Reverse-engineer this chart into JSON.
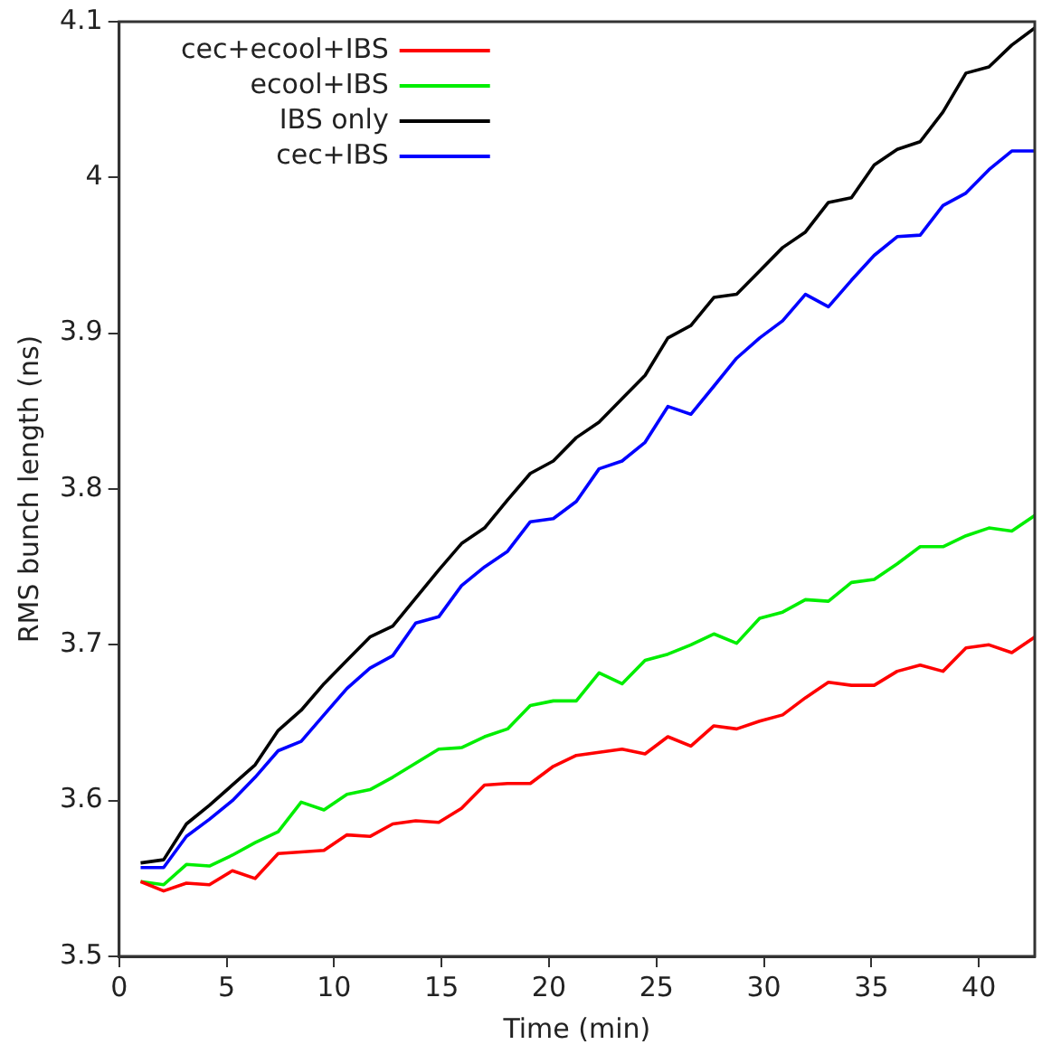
{
  "chart_data": {
    "type": "line",
    "xlabel": "Time (min)",
    "ylabel": "RMS bunch length (ns)",
    "x": [
      1,
      2.07,
      3.13,
      4.2,
      5.27,
      6.33,
      7.4,
      8.47,
      9.53,
      10.6,
      11.67,
      12.73,
      13.8,
      14.87,
      15.93,
      17,
      18.07,
      19.13,
      20.2,
      21.27,
      22.33,
      23.4,
      24.47,
      25.53,
      26.6,
      27.67,
      28.73,
      29.8,
      30.87,
      31.93,
      33,
      34.07,
      35.13,
      36.2,
      37.27,
      38.33,
      39.4,
      40.47,
      41.53,
      42.6
    ],
    "series": [
      {
        "name": "cec+ecool+IBS",
        "color": "#ff0000",
        "values": [
          3.548,
          3.542,
          3.547,
          3.546,
          3.555,
          3.55,
          3.566,
          3.567,
          3.568,
          3.578,
          3.577,
          3.585,
          3.587,
          3.586,
          3.595,
          3.61,
          3.611,
          3.611,
          3.622,
          3.629,
          3.631,
          3.633,
          3.63,
          3.641,
          3.635,
          3.648,
          3.646,
          3.651,
          3.655,
          3.666,
          3.676,
          3.674,
          3.674,
          3.683,
          3.687,
          3.683,
          3.698,
          3.7,
          3.695,
          3.705
        ]
      },
      {
        "name": "ecool+IBS",
        "color": "#00ee00",
        "values": [
          3.548,
          3.546,
          3.559,
          3.558,
          3.565,
          3.573,
          3.58,
          3.599,
          3.594,
          3.604,
          3.607,
          3.615,
          3.624,
          3.633,
          3.634,
          3.641,
          3.646,
          3.661,
          3.664,
          3.664,
          3.682,
          3.675,
          3.69,
          3.694,
          3.7,
          3.707,
          3.701,
          3.717,
          3.721,
          3.729,
          3.728,
          3.74,
          3.742,
          3.752,
          3.763,
          3.763,
          3.77,
          3.775,
          3.773,
          3.783
        ]
      },
      {
        "name": "IBS only",
        "color": "#000000",
        "values": [
          3.56,
          3.562,
          3.585,
          3.597,
          3.61,
          3.623,
          3.645,
          3.658,
          3.675,
          3.69,
          3.705,
          3.712,
          3.73,
          3.748,
          3.765,
          3.775,
          3.793,
          3.81,
          3.818,
          3.833,
          3.843,
          3.858,
          3.873,
          3.897,
          3.905,
          3.923,
          3.925,
          3.94,
          3.955,
          3.965,
          3.984,
          3.987,
          4.008,
          4.018,
          4.023,
          4.042,
          4.067,
          4.071,
          4.085,
          4.096
        ]
      },
      {
        "name": "cec+IBS",
        "color": "#0000ff",
        "values": [
          3.557,
          3.557,
          3.577,
          3.588,
          3.6,
          3.615,
          3.632,
          3.638,
          3.655,
          3.672,
          3.685,
          3.693,
          3.714,
          3.718,
          3.738,
          3.75,
          3.76,
          3.779,
          3.781,
          3.792,
          3.813,
          3.818,
          3.83,
          3.853,
          3.848,
          3.866,
          3.884,
          3.897,
          3.908,
          3.925,
          3.917,
          3.934,
          3.95,
          3.962,
          3.963,
          3.982,
          3.99,
          4.005,
          4.017,
          4.017
        ]
      }
    ],
    "xlim": [
      0,
      42.6
    ],
    "xticks": [
      0,
      5,
      10,
      15,
      20,
      25,
      30,
      35,
      40
    ],
    "ylim": [
      3.5,
      4.1
    ],
    "yticks": [
      3.5,
      3.6,
      3.7,
      3.8,
      3.9,
      4,
      4.1
    ],
    "grid": false,
    "legend": "top left",
    "marker": "none",
    "line_style": "solid"
  }
}
